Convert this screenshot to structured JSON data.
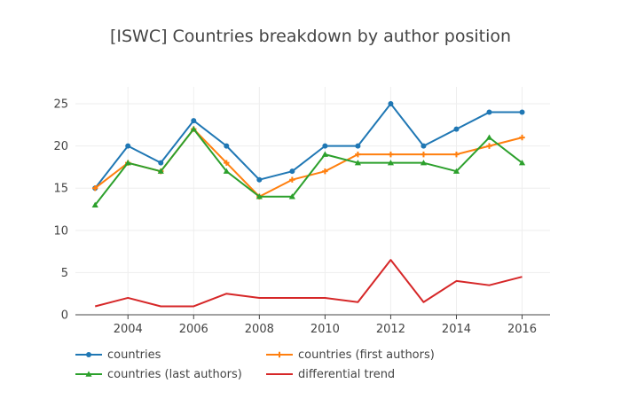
{
  "chart_data": {
    "type": "line",
    "title": "[ISWC] Countries breakdown by author position",
    "xlabel": "",
    "ylabel": "",
    "x": [
      2003,
      2004,
      2005,
      2006,
      2007,
      2008,
      2009,
      2010,
      2011,
      2012,
      2013,
      2014,
      2015,
      2016
    ],
    "xlim": [
      2002.4,
      2016.85
    ],
    "ylim": [
      0,
      27
    ],
    "xticks": [
      2004,
      2006,
      2008,
      2010,
      2012,
      2014,
      2016
    ],
    "yticks": [
      0,
      5,
      10,
      15,
      20,
      25
    ],
    "grid": true,
    "legend_position": "bottom",
    "series": [
      {
        "name": "countries",
        "color": "#1f77b4",
        "marker": "circle",
        "values": [
          15,
          20,
          18,
          23,
          20,
          16,
          17,
          20,
          20,
          25,
          20,
          22,
          24,
          24
        ]
      },
      {
        "name": "countries (first authors)",
        "color": "#ff7f0e",
        "marker": "cross",
        "values": [
          15,
          18,
          17,
          22,
          18,
          14,
          16,
          17,
          19,
          19,
          19,
          19,
          20,
          21
        ]
      },
      {
        "name": "countries (last authors)",
        "color": "#2ca02c",
        "marker": "triangle",
        "values": [
          13,
          18,
          17,
          22,
          17,
          14,
          14,
          19,
          18,
          18,
          18,
          17,
          21,
          18
        ]
      },
      {
        "name": "differential trend",
        "color": "#d62728",
        "marker": "none",
        "values": [
          1,
          2,
          1,
          1,
          2.5,
          2,
          2,
          2,
          1.5,
          6.5,
          1.5,
          4,
          3.5,
          4.5
        ]
      }
    ]
  }
}
